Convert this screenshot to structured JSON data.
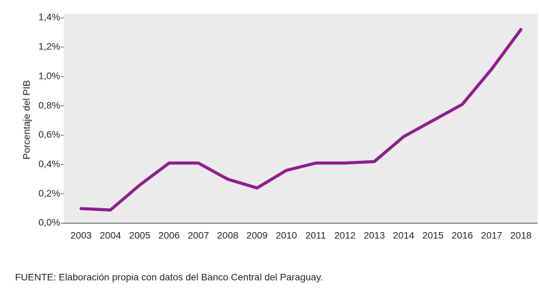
{
  "chart_data": {
    "type": "line",
    "ylabel": "Porcentaje del PIB",
    "note": "FUENTE: Elaboración propia con datos del Banco Central del Paraguay.",
    "categories": [
      "2003",
      "2004",
      "2005",
      "2006",
      "2007",
      "2008",
      "2009",
      "2010",
      "2011",
      "2012",
      "2013",
      "2014",
      "2015",
      "2016",
      "2017",
      "2018"
    ],
    "values": [
      0.1,
      0.09,
      0.26,
      0.41,
      0.41,
      0.3,
      0.24,
      0.36,
      0.41,
      0.41,
      0.42,
      0.59,
      0.7,
      0.81,
      1.05,
      1.32
    ],
    "color": "#8e1f8f",
    "ylim": [
      0,
      1.4
    ],
    "yticks": [
      {
        "value": 0,
        "label": "0,0%"
      },
      {
        "value": 0.2,
        "label": "0,2%"
      },
      {
        "value": 0.4,
        "label": "0,4%"
      },
      {
        "value": 0.6,
        "label": "0,6%"
      },
      {
        "value": 0.8,
        "label": "0,8%"
      },
      {
        "value": 1.0,
        "label": "1,0%"
      },
      {
        "value": 1.2,
        "label": "1,2%"
      },
      {
        "value": 1.4,
        "label": "1,4%"
      }
    ],
    "grid": false
  }
}
